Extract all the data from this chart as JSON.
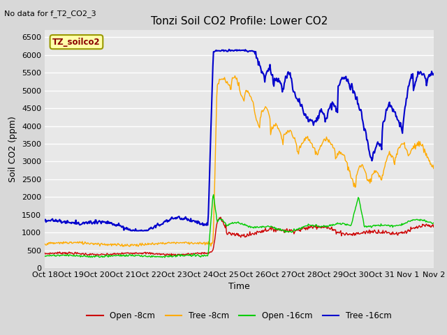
{
  "title": "Tonzi Soil CO2 Profile: Lower CO2",
  "no_data_text": "No data for f_T2_CO2_3",
  "legend_box_text": "TZ_soilco2",
  "xlabel": "Time",
  "ylabel": "Soil CO2 (ppm)",
  "ylim": [
    0,
    6700
  ],
  "yticks": [
    0,
    500,
    1000,
    1500,
    2000,
    2500,
    3000,
    3500,
    4000,
    4500,
    5000,
    5500,
    6000,
    6500
  ],
  "xtick_labels": [
    "Oct 18",
    "Oct 19",
    "Oct 20",
    "Oct 21",
    "Oct 22",
    "Oct 23",
    "Oct 24",
    "Oct 25",
    "Oct 26",
    "Oct 27",
    "Oct 28",
    "Oct 29",
    "Oct 30",
    "Oct 31",
    "Nov 1",
    "Nov 2"
  ],
  "series_colors": {
    "open_8cm": "#cc0000",
    "tree_8cm": "#ffaa00",
    "open_16cm": "#00cc00",
    "tree_16cm": "#0000cc"
  },
  "legend_labels": [
    "Open -8cm",
    "Tree -8cm",
    "Open -16cm",
    "Tree -16cm"
  ],
  "fig_bg_color": "#d8d8d8",
  "plot_bg_color": "#e8e8e8",
  "grid_color": "#ffffff",
  "title_fontsize": 11,
  "axis_fontsize": 9,
  "tick_fontsize": 8
}
